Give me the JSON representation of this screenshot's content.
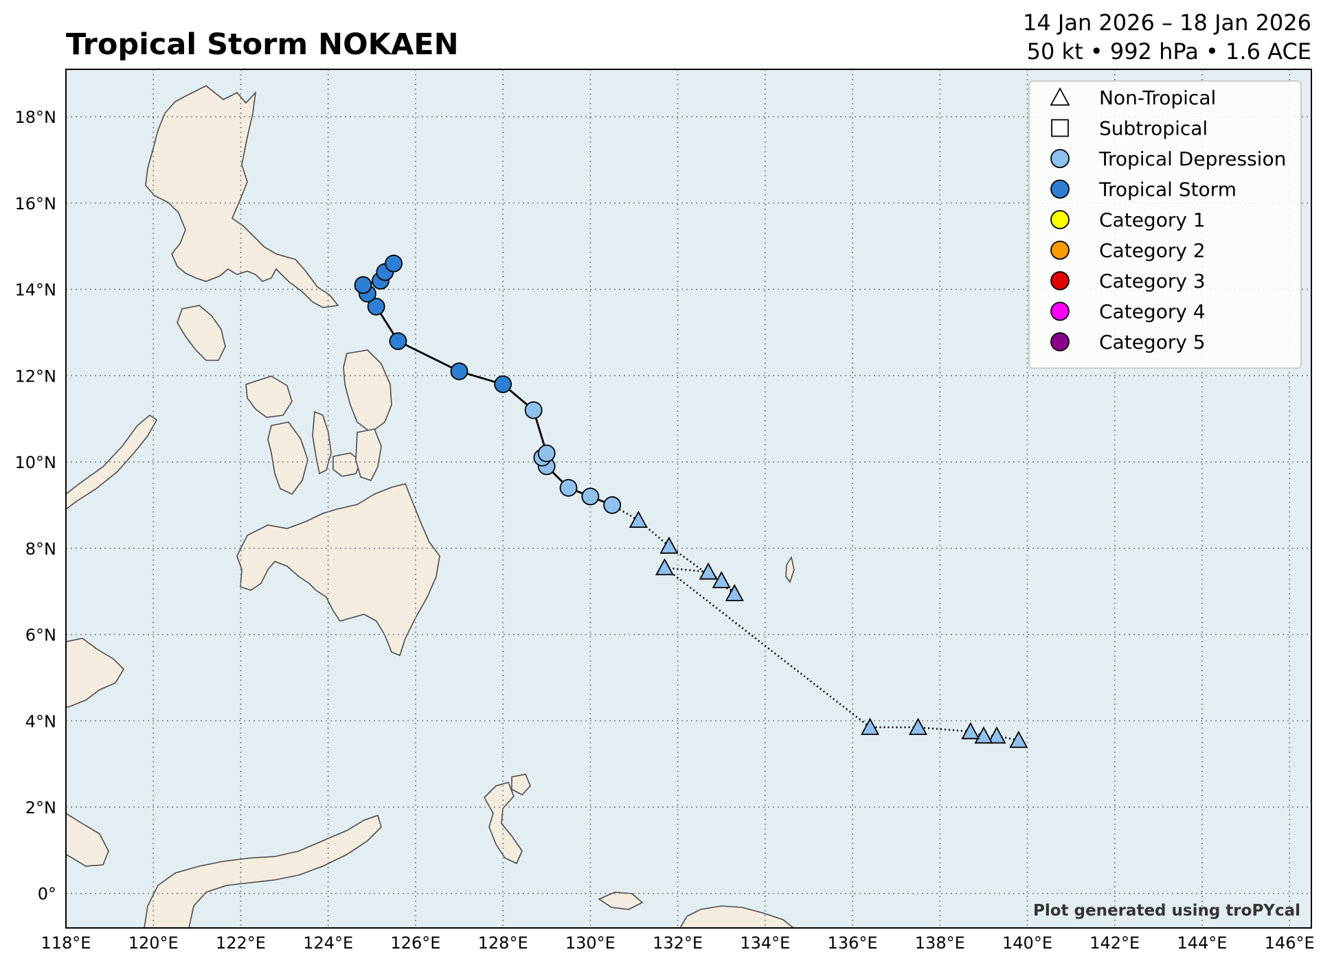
{
  "header": {
    "title": "Tropical Storm NOKAEN",
    "date_range": "14 Jan 2026 – 18 Jan 2026",
    "stats": "50 kt • 992 hPa • 1.6 ACE"
  },
  "credit": "Plot generated using troPYcal",
  "colors": {
    "ocean": "#e3eef2",
    "land": "#f5ece0",
    "coast": "#4a4a4a",
    "grid": "#7a7a7a",
    "tropical_depression": "#8fc1ee",
    "tropical_storm": "#2e7fd3",
    "category_1": "#ffff00",
    "category_2": "#ff9a00",
    "category_3": "#e00000",
    "category_4": "#ff00ff",
    "category_5": "#8b008b"
  },
  "axes": {
    "lon_range": [
      118,
      146.5
    ],
    "lat_range": [
      -0.8,
      19.1
    ],
    "x_ticks": [
      "118°E",
      "120°E",
      "122°E",
      "124°E",
      "126°E",
      "128°E",
      "130°E",
      "132°E",
      "134°E",
      "136°E",
      "138°E",
      "140°E",
      "142°E",
      "144°E",
      "146°E"
    ],
    "y_ticks": [
      "0°",
      "2°N",
      "4°N",
      "6°N",
      "8°N",
      "10°N",
      "12°N",
      "14°N",
      "16°N",
      "18°N"
    ]
  },
  "legend": {
    "placement": "top-right",
    "items": [
      {
        "label": "Non-Tropical",
        "marker": "triangle",
        "fill": "none"
      },
      {
        "label": "Subtropical",
        "marker": "square",
        "fill": "none"
      },
      {
        "label": "Tropical Depression",
        "marker": "circle",
        "fill": "#8fc1ee"
      },
      {
        "label": "Tropical Storm",
        "marker": "circle",
        "fill": "#2e7fd3"
      },
      {
        "label": "Category 1",
        "marker": "circle",
        "fill": "#ffff00"
      },
      {
        "label": "Category 2",
        "marker": "circle",
        "fill": "#ff9a00"
      },
      {
        "label": "Category 3",
        "marker": "circle",
        "fill": "#e00000"
      },
      {
        "label": "Category 4",
        "marker": "circle",
        "fill": "#ff00ff"
      },
      {
        "label": "Category 5",
        "marker": "circle",
        "fill": "#8b008b"
      }
    ]
  },
  "chart_data": {
    "type": "scatter",
    "description_units": "longitude °E, latitude °N",
    "track": [
      {
        "lon": 139.8,
        "lat": 3.55,
        "type": "non-tropical",
        "intensity": "TD"
      },
      {
        "lon": 139.3,
        "lat": 3.65,
        "type": "non-tropical",
        "intensity": "TD"
      },
      {
        "lon": 139.0,
        "lat": 3.65,
        "type": "non-tropical",
        "intensity": "TD"
      },
      {
        "lon": 138.7,
        "lat": 3.75,
        "type": "non-tropical",
        "intensity": "TD"
      },
      {
        "lon": 137.5,
        "lat": 3.85,
        "type": "non-tropical",
        "intensity": "TD"
      },
      {
        "lon": 136.4,
        "lat": 3.85,
        "type": "non-tropical",
        "intensity": "TD"
      },
      {
        "lon": 131.7,
        "lat": 7.55,
        "type": "non-tropical",
        "intensity": "TD"
      },
      {
        "lon": 132.7,
        "lat": 7.45,
        "type": "non-tropical",
        "intensity": "TD"
      },
      {
        "lon": 133.0,
        "lat": 7.25,
        "type": "non-tropical",
        "intensity": "TD"
      },
      {
        "lon": 133.3,
        "lat": 6.95,
        "type": "non-tropical",
        "intensity": "TD"
      },
      {
        "lon": 131.8,
        "lat": 8.05,
        "type": "non-tropical",
        "intensity": "TD"
      },
      {
        "lon": 131.1,
        "lat": 8.65,
        "type": "non-tropical",
        "intensity": "TD"
      },
      {
        "lon": 130.5,
        "lat": 9.0,
        "type": "tropical",
        "intensity": "TD"
      },
      {
        "lon": 130.0,
        "lat": 9.2,
        "type": "tropical",
        "intensity": "TD"
      },
      {
        "lon": 129.5,
        "lat": 9.4,
        "type": "tropical",
        "intensity": "TD"
      },
      {
        "lon": 129.0,
        "lat": 9.9,
        "type": "tropical",
        "intensity": "TD"
      },
      {
        "lon": 128.9,
        "lat": 10.1,
        "type": "tropical",
        "intensity": "TD"
      },
      {
        "lon": 129.0,
        "lat": 10.2,
        "type": "tropical",
        "intensity": "TD"
      },
      {
        "lon": 128.7,
        "lat": 11.2,
        "type": "tropical",
        "intensity": "TD"
      },
      {
        "lon": 128.0,
        "lat": 11.8,
        "type": "tropical",
        "intensity": "TS"
      },
      {
        "lon": 127.0,
        "lat": 12.1,
        "type": "tropical",
        "intensity": "TS"
      },
      {
        "lon": 125.6,
        "lat": 12.8,
        "type": "tropical",
        "intensity": "TS"
      },
      {
        "lon": 125.1,
        "lat": 13.6,
        "type": "tropical",
        "intensity": "TS"
      },
      {
        "lon": 124.9,
        "lat": 13.9,
        "type": "tropical",
        "intensity": "TS"
      },
      {
        "lon": 124.8,
        "lat": 14.1,
        "type": "tropical",
        "intensity": "TS"
      },
      {
        "lon": 125.2,
        "lat": 14.2,
        "type": "tropical",
        "intensity": "TS"
      },
      {
        "lon": 125.3,
        "lat": 14.4,
        "type": "tropical",
        "intensity": "TS"
      },
      {
        "lon": 125.5,
        "lat": 14.6,
        "type": "tropical",
        "intensity": "TS"
      }
    ]
  }
}
